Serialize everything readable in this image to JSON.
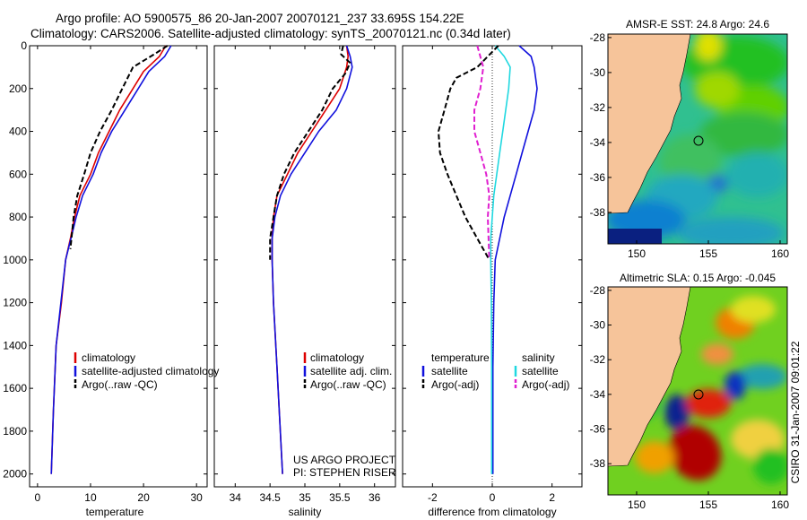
{
  "header": {
    "line1": "Argo profile: AO 5900575_86 20-Jan-2007 20070121_237 33.695S 154.22E",
    "line2": "Climatology: CARS2006. Satellite-adjusted climatology: synTS_20070121.nc (0.34d later)"
  },
  "side_label": "CSIRO 31-Jan-2007 09:01:22",
  "colors": {
    "climatology": "#dd0000",
    "satellite": "#1010dd",
    "argo": "#000000",
    "sat_salinity": "#20d8e0",
    "argo_salinity_adj": "#e020d0",
    "land": "#f6c49a"
  },
  "chart_data": [
    {
      "id": "temperature",
      "type": "line",
      "xlabel": "temperature",
      "xlim": [
        -1.5,
        32
      ],
      "ylim": [
        2060,
        0
      ],
      "xticks": [
        "0",
        "10",
        "20",
        "30"
      ],
      "xtick_values": [
        0,
        10,
        20,
        30
      ],
      "yticks": [
        "0",
        "200",
        "400",
        "600",
        "800",
        "1000",
        "1200",
        "1400",
        "1600",
        "1800",
        "2000"
      ],
      "ytick_values": [
        0,
        200,
        400,
        600,
        800,
        1000,
        1200,
        1400,
        1600,
        1800,
        2000
      ],
      "legend": [
        "climatology",
        "satellite-adjusted climatology",
        "Argo(..raw -QC)"
      ],
      "series": [
        {
          "name": "climatology",
          "style": "solid",
          "x": [
            24.2,
            23,
            20,
            18,
            15.5,
            13.5,
            11.5,
            10,
            8,
            7,
            6.2,
            5.3,
            4.5,
            3.5,
            3,
            2.6
          ],
          "y": [
            0,
            50,
            120,
            200,
            300,
            400,
            500,
            600,
            700,
            800,
            900,
            1000,
            1200,
            1400,
            1700,
            2000
          ]
        },
        {
          "name": "satellite-adjusted climatology",
          "style": "solid",
          "x": [
            25.2,
            24,
            21,
            19,
            16.5,
            14,
            12,
            10.5,
            8.5,
            7.3,
            6.3,
            5.3,
            4.4,
            3.5,
            3,
            2.6
          ],
          "y": [
            0,
            50,
            120,
            200,
            300,
            400,
            500,
            600,
            700,
            800,
            900,
            1000,
            1200,
            1400,
            1700,
            2000
          ]
        },
        {
          "name": "Argo(..raw -QC)",
          "style": "dash",
          "x": [
            24.5,
            22,
            18,
            16,
            14,
            11.8,
            10,
            8.8,
            7.5,
            6.8,
            6.2
          ],
          "y": [
            0,
            40,
            100,
            200,
            300,
            400,
            500,
            600,
            700,
            800,
            950
          ]
        }
      ]
    },
    {
      "id": "salinity",
      "type": "line",
      "xlabel": "salinity",
      "xlim": [
        33.7,
        36.3
      ],
      "ylim": [
        2060,
        0
      ],
      "xticks": [
        "34",
        "34.5",
        "35",
        "35.5",
        "36"
      ],
      "xtick_values": [
        34,
        34.5,
        35,
        35.5,
        36
      ],
      "legend": [
        "climatology",
        "satellite adj. clim.",
        "Argo(..raw -QC)"
      ],
      "annotation": [
        "US ARGO PROJECT",
        "PI: STEPHEN RISER"
      ],
      "series": [
        {
          "name": "climatology",
          "style": "solid",
          "x": [
            35.6,
            35.62,
            35.6,
            35.5,
            35.3,
            35.1,
            34.9,
            34.75,
            34.6,
            34.55,
            34.53,
            34.53,
            34.55,
            34.6,
            34.68
          ],
          "y": [
            0,
            50,
            100,
            200,
            300,
            400,
            500,
            600,
            700,
            800,
            900,
            1000,
            1200,
            1500,
            2000
          ]
        },
        {
          "name": "satellite adj. clim.",
          "style": "solid",
          "x": [
            35.6,
            35.65,
            35.68,
            35.6,
            35.45,
            35.2,
            35.0,
            34.8,
            34.65,
            34.57,
            34.53,
            34.53,
            34.55,
            34.6,
            34.68
          ],
          "y": [
            0,
            50,
            100,
            200,
            300,
            400,
            500,
            600,
            700,
            800,
            900,
            1000,
            1200,
            1500,
            2000
          ]
        },
        {
          "name": "Argo(..raw -QC)",
          "style": "dash",
          "x": [
            35.55,
            35.52,
            35.65,
            35.58,
            35.4,
            35.25,
            35.05,
            34.85,
            34.7,
            34.6,
            34.55,
            34.5,
            34.5
          ],
          "y": [
            0,
            40,
            80,
            130,
            200,
            300,
            400,
            500,
            600,
            700,
            800,
            900,
            1000
          ]
        }
      ]
    },
    {
      "id": "difference",
      "type": "line",
      "xlabel": "difference from climatology",
      "xlim": [
        -3,
        3
      ],
      "ylim": [
        2060,
        0
      ],
      "xticks": [
        "-2",
        "0",
        "2"
      ],
      "xtick_values": [
        -2,
        0,
        2
      ],
      "legend_temperature": [
        "temperature",
        "satellite",
        "Argo(-adj)"
      ],
      "legend_salinity": [
        "salinity",
        "satellite",
        "Argo(-adj)"
      ],
      "series": [
        {
          "name": "temperature satellite",
          "style": "solid",
          "color_key": "satellite",
          "x": [
            0.9,
            1.3,
            1.4,
            1.5,
            1.4,
            1.2,
            1.0,
            0.8,
            0.6,
            0.4,
            0.25,
            0.1,
            0.05,
            0.02,
            0.02
          ],
          "y": [
            0,
            50,
            100,
            200,
            300,
            400,
            500,
            600,
            700,
            800,
            900,
            1000,
            1200,
            1500,
            2000
          ]
        },
        {
          "name": "salinity satellite",
          "style": "solid",
          "color_key": "sat_salinity",
          "x": [
            0.1,
            0.4,
            0.6,
            0.55,
            0.45,
            0.35,
            0.25,
            0.15,
            0.05,
            0.0,
            -0.05,
            -0.05,
            -0.03,
            -0.02,
            -0.02
          ],
          "y": [
            0,
            50,
            100,
            200,
            300,
            400,
            500,
            600,
            700,
            800,
            900,
            1000,
            1200,
            1500,
            2000
          ]
        },
        {
          "name": "temperature Argo(-adj)",
          "style": "dash",
          "color_key": "argo",
          "x": [
            0.2,
            -0.5,
            -1.2,
            -1.4,
            -1.6,
            -1.8,
            -1.75,
            -1.5,
            -1.2,
            -0.9,
            -0.5,
            -0.1
          ],
          "y": [
            0,
            100,
            150,
            200,
            300,
            400,
            500,
            600,
            700,
            800,
            900,
            1000
          ]
        },
        {
          "name": "salinity Argo(-adj)",
          "style": "dash",
          "color_key": "argo_salinity_adj",
          "x": [
            -0.5,
            -0.3,
            -0.4,
            -0.6,
            -0.6,
            -0.4,
            -0.2,
            -0.1,
            -0.15,
            -0.1
          ],
          "y": [
            0,
            100,
            200,
            300,
            400,
            500,
            600,
            700,
            800,
            1000
          ]
        }
      ]
    },
    {
      "id": "sst_map",
      "type": "heatmap",
      "title": "AMSR-E SST: 24.8 Argo: 24.6",
      "xlim": [
        148,
        160.5
      ],
      "ylim": [
        -39.8,
        -27.8
      ],
      "xticks": [
        "150",
        "155",
        "160"
      ],
      "xtick_values": [
        150,
        155,
        160
      ],
      "yticks": [
        "-28",
        "-30",
        "-32",
        "-34",
        "-36",
        "-38"
      ],
      "ytick_values": [
        -28,
        -30,
        -32,
        -34,
        -36,
        -38
      ],
      "marker": {
        "lon": 154.22,
        "lat": -33.695
      }
    },
    {
      "id": "sla_map",
      "type": "heatmap",
      "title": "Altimetric SLA: 0.15 Argo: -0.045",
      "xlim": [
        148,
        160.5
      ],
      "ylim": [
        -39.8,
        -27.8
      ],
      "xticks": [
        "150",
        "155",
        "160"
      ],
      "xtick_values": [
        150,
        155,
        160
      ],
      "yticks": [
        "-28",
        "-30",
        "-32",
        "-34",
        "-36",
        "-38"
      ],
      "ytick_values": [
        -28,
        -30,
        -32,
        -34,
        -36,
        -38
      ],
      "marker": {
        "lon": 154.22,
        "lat": -33.695
      }
    }
  ]
}
